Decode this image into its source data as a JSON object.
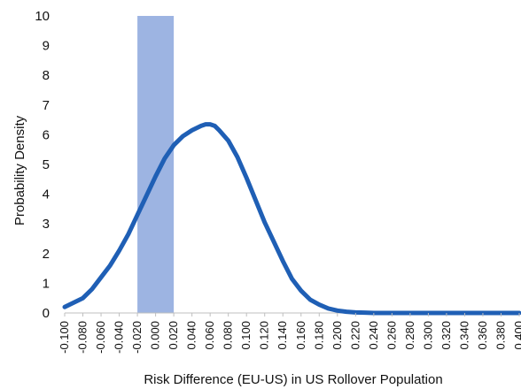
{
  "chart_data": {
    "type": "line",
    "xlabel": "Risk Difference (EU-US) in US Rollover Population",
    "ylabel": "Probability Density",
    "xlim": [
      -0.1,
      0.4
    ],
    "ylim": [
      0,
      10
    ],
    "grid": false,
    "x_tick_labels": [
      "-0.100",
      "-0.080",
      "-0.060",
      "-0.040",
      "-0.020",
      "0.000",
      "0.020",
      "0.040",
      "0.060",
      "0.080",
      "0.100",
      "0.120",
      "0.140",
      "0.160",
      "0.180",
      "0.200",
      "0.220",
      "0.240",
      "0.260",
      "0.280",
      "0.300",
      "0.320",
      "0.340",
      "0.360",
      "0.380",
      "0.400"
    ],
    "y_tick_labels": [
      "0",
      "1",
      "2",
      "3",
      "4",
      "5",
      "6",
      "7",
      "8",
      "9",
      "10"
    ],
    "shaded_band": {
      "x_range": [
        -0.02,
        0.02
      ],
      "color": "#9db4e2"
    },
    "series": [
      {
        "color": "#1f5fb5",
        "x": [
          -0.1,
          -0.09,
          -0.08,
          -0.07,
          -0.06,
          -0.05,
          -0.04,
          -0.03,
          -0.02,
          -0.01,
          0.0,
          0.01,
          0.02,
          0.03,
          0.04,
          0.05,
          0.055,
          0.06,
          0.065,
          0.07,
          0.08,
          0.09,
          0.1,
          0.11,
          0.12,
          0.13,
          0.14,
          0.15,
          0.16,
          0.17,
          0.18,
          0.19,
          0.2,
          0.21,
          0.22,
          0.23,
          0.24,
          0.26,
          0.3,
          0.34,
          0.4
        ],
        "y": [
          0.2,
          0.35,
          0.5,
          0.8,
          1.2,
          1.6,
          2.1,
          2.65,
          3.3,
          3.95,
          4.6,
          5.2,
          5.65,
          5.95,
          6.15,
          6.3,
          6.35,
          6.35,
          6.3,
          6.15,
          5.8,
          5.25,
          4.55,
          3.8,
          3.05,
          2.4,
          1.75,
          1.15,
          0.75,
          0.45,
          0.28,
          0.15,
          0.08,
          0.04,
          0.02,
          0.01,
          0.0,
          0.0,
          0.0,
          0.0,
          0.0
        ]
      }
    ]
  }
}
